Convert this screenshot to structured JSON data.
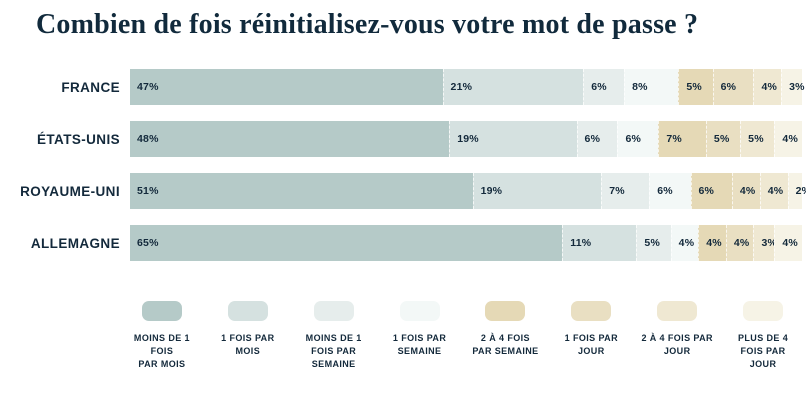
{
  "title": "Combien de fois réinitialisez-vous votre mot de passe ?",
  "chart_data": {
    "type": "bar",
    "variant": "horizontal-stacked",
    "stacked": true,
    "grid": false,
    "legend_position": "bottom",
    "value_suffix": "%",
    "x_range_percent": [
      0,
      100
    ],
    "categories": [
      "FRANCE",
      "ÉTATS-UNIS",
      "ROYAUME-UNI",
      "ALLEMAGNE"
    ],
    "series": [
      {
        "name": "MOINS DE 1 FOIS PAR MOIS",
        "legend_label": "MOINS DE 1 FOIS\nPAR MOIS",
        "color": "#b5cac8",
        "values": [
          47,
          48,
          51,
          65
        ]
      },
      {
        "name": "1 FOIS PAR MOIS",
        "legend_label": "1 FOIS PAR\nMOIS",
        "color": "#d5e1e0",
        "values": [
          21,
          19,
          19,
          11
        ]
      },
      {
        "name": "MOINS DE 1 FOIS PAR SEMAINE",
        "legend_label": "MOINS DE 1\nFOIS PAR\nSEMAINE",
        "color": "#e6edec",
        "values": [
          6,
          6,
          7,
          5
        ]
      },
      {
        "name": "1 FOIS PAR SEMAINE",
        "legend_label": "1 FOIS PAR\nSEMAINE",
        "color": "#f3f8f7",
        "values": [
          8,
          6,
          6,
          4
        ]
      },
      {
        "name": "2 À 4 FOIS PAR SEMAINE",
        "legend_label": "2 À 4 FOIS\nPAR SEMAINE",
        "color": "#e5d9b6",
        "values": [
          5,
          7,
          6,
          4
        ]
      },
      {
        "name": "1 FOIS PAR JOUR",
        "legend_label": "1 FOIS PAR\nJOUR",
        "color": "#e9dfc2",
        "values": [
          6,
          5,
          4,
          4
        ]
      },
      {
        "name": "2 À 4 FOIS PAR JOUR",
        "legend_label": "2 À 4 FOIS PAR\nJOUR",
        "color": "#efe8d2",
        "values": [
          4,
          5,
          4,
          3
        ]
      },
      {
        "name": "PLUS DE 4 FOIS PAR JOUR",
        "legend_label": "PLUS DE 4\nFOIS PAR\nJOUR",
        "color": "#f6f3e6",
        "values": [
          3,
          4,
          2,
          4
        ]
      }
    ]
  },
  "text_color": "#13293b"
}
